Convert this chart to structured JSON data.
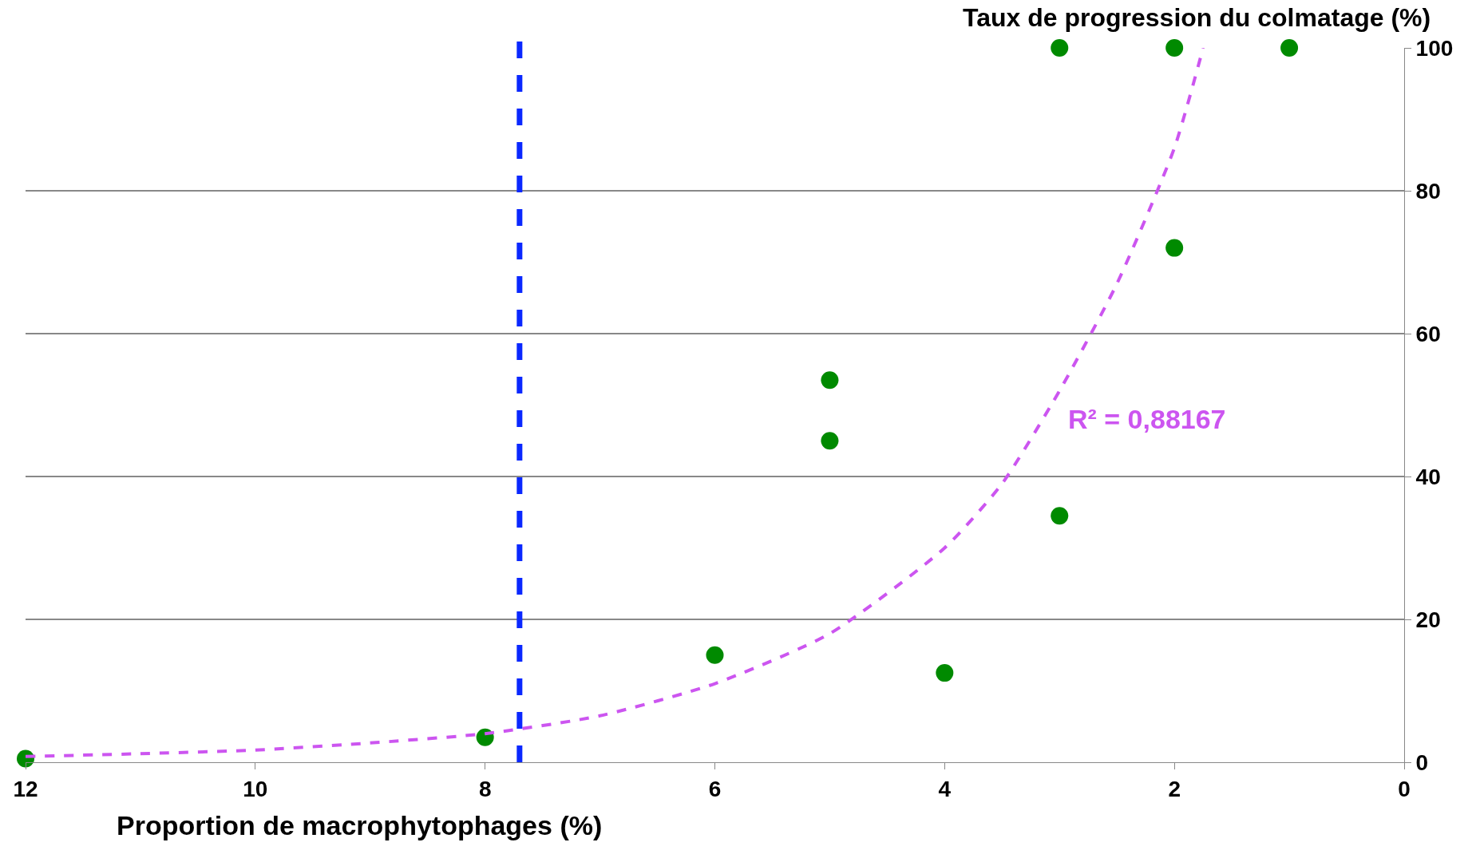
{
  "chart_data": {
    "type": "scatter",
    "xlabel": "Proportion de macrophytophages (%)",
    "ylabel": "Taux de progression du colmatage (%)",
    "xlim": [
      12,
      0
    ],
    "xticks": [
      12,
      10,
      8,
      6,
      4,
      2,
      0
    ],
    "ylim": [
      0,
      100
    ],
    "yticks": [
      0,
      20,
      40,
      60,
      80,
      100
    ],
    "grid": "y",
    "legend": false,
    "series": [
      {
        "marker": "circle",
        "color": "#008a00",
        "x": [
          12,
          8,
          6,
          5,
          5,
          4,
          3,
          3,
          2,
          2,
          1
        ],
        "values": [
          0.5,
          3.5,
          15,
          53.5,
          45,
          12.5,
          34.5,
          100,
          72,
          100,
          100
        ]
      },
      {
        "type": "line",
        "color": "#cc55f0",
        "line_style": "dashed",
        "x": [
          12,
          11,
          10,
          9,
          8,
          7,
          6,
          5,
          4,
          3.5,
          3,
          2.5,
          2,
          1.75
        ],
        "values": [
          0.8,
          1.2,
          1.7,
          2.7,
          4,
          6.5,
          11,
          18,
          30,
          39,
          52,
          67,
          86,
          100
        ]
      }
    ],
    "ref_lines": [
      {
        "axis": "x",
        "value": 7.7,
        "color": "#0a28ff",
        "line_style": "dashed"
      }
    ],
    "annotations": [
      "R² = 0,88167"
    ]
  }
}
